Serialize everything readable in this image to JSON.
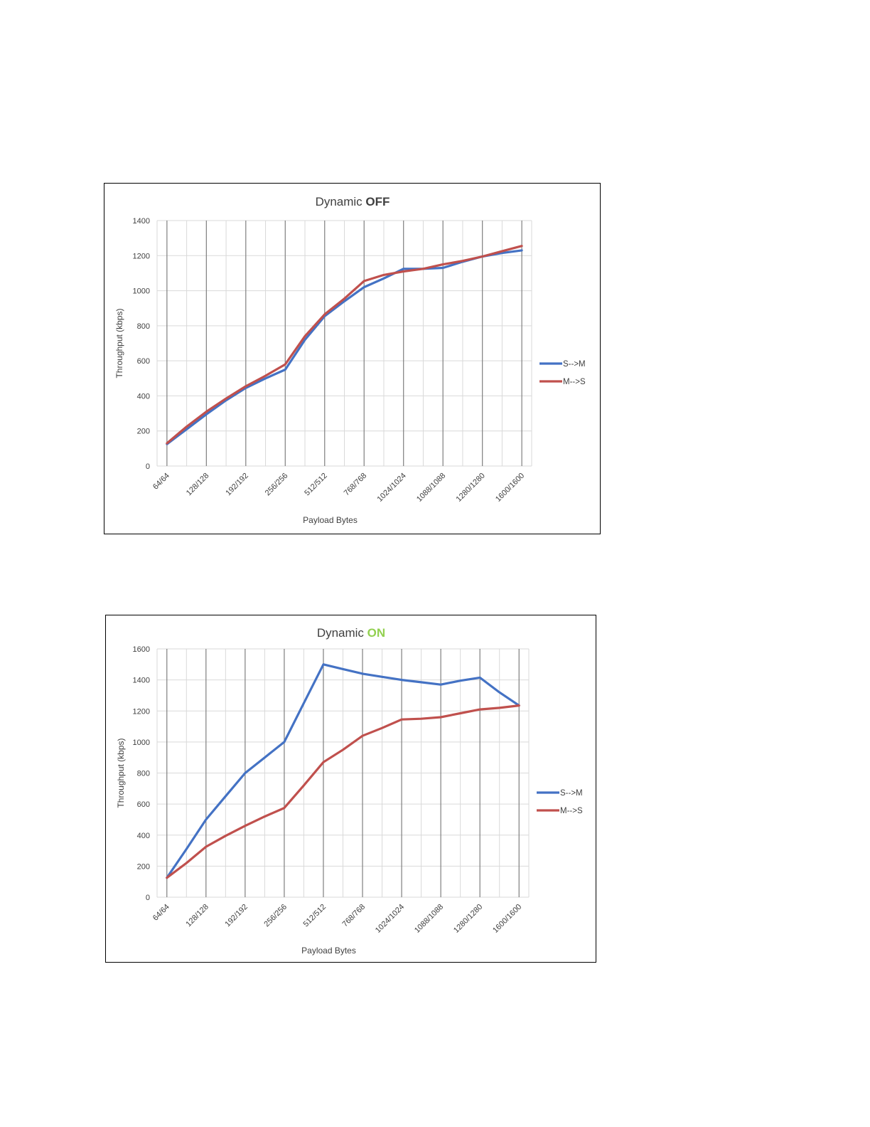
{
  "chart_data": [
    {
      "type": "line",
      "title": "Dynamic",
      "title_emphasis": "OFF",
      "title_emphasis_color": "#404040",
      "xlabel": "Payload Bytes",
      "ylabel": "Throughput (kbps)",
      "ylim": [
        0,
        1400
      ],
      "yticks": [
        0,
        200,
        400,
        600,
        800,
        1000,
        1200,
        1400
      ],
      "grid": true,
      "legend_position": "right",
      "categories": [
        "64/64",
        "",
        "128/128",
        "",
        "192/192",
        "",
        "256/256",
        "",
        "512/512",
        "",
        "768/768",
        "",
        "1024/1024",
        "",
        "1088/1088",
        "",
        "1280/1280",
        "",
        "1600/1600"
      ],
      "series": [
        {
          "name": "S-->M",
          "color": "#4472C4",
          "values": [
            125,
            210,
            295,
            375,
            445,
            500,
            550,
            720,
            855,
            940,
            1020,
            1070,
            1125,
            1125,
            1130,
            1165,
            1195,
            1215,
            1230
          ]
        },
        {
          "name": "M-->S",
          "color": "#C0504D",
          "values": [
            130,
            225,
            310,
            385,
            455,
            515,
            580,
            740,
            865,
            955,
            1055,
            1090,
            1110,
            1125,
            1150,
            1170,
            1195,
            1225,
            1255
          ]
        }
      ]
    },
    {
      "type": "line",
      "title": "Dynamic",
      "title_emphasis": "ON",
      "title_emphasis_color": "#92D050",
      "xlabel": "Payload Bytes",
      "ylabel": "Throughput (kbps)",
      "ylim": [
        0,
        1600
      ],
      "yticks": [
        0,
        200,
        400,
        600,
        800,
        1000,
        1200,
        1400,
        1600
      ],
      "grid": true,
      "legend_position": "right",
      "categories": [
        "64/64",
        "",
        "128/128",
        "",
        "192/192",
        "",
        "256/256",
        "",
        "512/512",
        "",
        "768/768",
        "",
        "1024/1024",
        "",
        "1088/1088",
        "",
        "1280/1280",
        "",
        "1600/1600"
      ],
      "series": [
        {
          "name": "S-->M",
          "color": "#4472C4",
          "values": [
            125,
            310,
            500,
            650,
            800,
            900,
            1000,
            1250,
            1500,
            1470,
            1440,
            1420,
            1400,
            1385,
            1370,
            1395,
            1415,
            1320,
            1235
          ]
        },
        {
          "name": "M-->S",
          "color": "#C0504D",
          "values": [
            125,
            220,
            325,
            395,
            460,
            520,
            575,
            720,
            870,
            950,
            1040,
            1090,
            1145,
            1150,
            1160,
            1185,
            1210,
            1220,
            1235
          ]
        }
      ]
    }
  ]
}
